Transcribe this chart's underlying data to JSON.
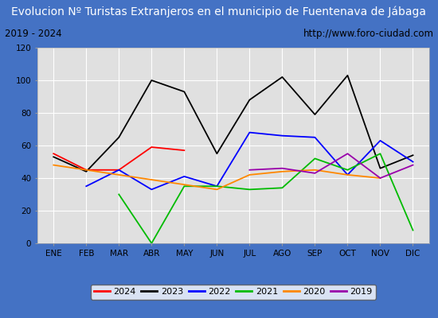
{
  "title": "Evolucion Nº Turistas Extranjeros en el municipio de Fuentenava de Jábaga",
  "subtitle_left": "2019 - 2024",
  "subtitle_right": "http://www.foro-ciudad.com",
  "xlabel_ticks": [
    "ENE",
    "FEB",
    "MAR",
    "ABR",
    "MAY",
    "JUN",
    "JUL",
    "AGO",
    "SEP",
    "OCT",
    "NOV",
    "DIC"
  ],
  "ylim": [
    0,
    120
  ],
  "yticks": [
    0,
    20,
    40,
    60,
    80,
    100,
    120
  ],
  "series": {
    "2024": {
      "color": "#ff0000",
      "data": [
        55,
        45,
        45,
        59,
        57,
        null,
        null,
        null,
        null,
        null,
        null,
        null
      ]
    },
    "2023": {
      "color": "#000000",
      "data": [
        53,
        44,
        65,
        100,
        93,
        55,
        88,
        102,
        79,
        103,
        46,
        54
      ]
    },
    "2022": {
      "color": "#0000ff",
      "data": [
        null,
        35,
        45,
        33,
        41,
        35,
        68,
        66,
        65,
        42,
        63,
        50
      ]
    },
    "2021": {
      "color": "#00bb00",
      "data": [
        null,
        null,
        30,
        0,
        35,
        35,
        33,
        34,
        52,
        45,
        55,
        8
      ]
    },
    "2020": {
      "color": "#ff8800",
      "data": [
        48,
        null,
        null,
        null,
        null,
        33,
        42,
        44,
        45,
        42,
        40,
        null
      ]
    },
    "2019": {
      "color": "#9900aa",
      "data": [
        null,
        null,
        null,
        null,
        null,
        null,
        45,
        46,
        43,
        55,
        40,
        48
      ]
    }
  },
  "title_bg_color": "#4472c4",
  "title_text_color": "#ffffff",
  "plot_bg_color": "#e0e0e0",
  "outer_bg_color": "#4472c4",
  "grid_color": "#ffffff",
  "subtitle_bg_color": "#ffffff",
  "legend_bg_color": "#ffffff",
  "subtitle_fontsize": 8.5,
  "title_fontsize": 10,
  "tick_fontsize": 7.5,
  "legend_fontsize": 8
}
